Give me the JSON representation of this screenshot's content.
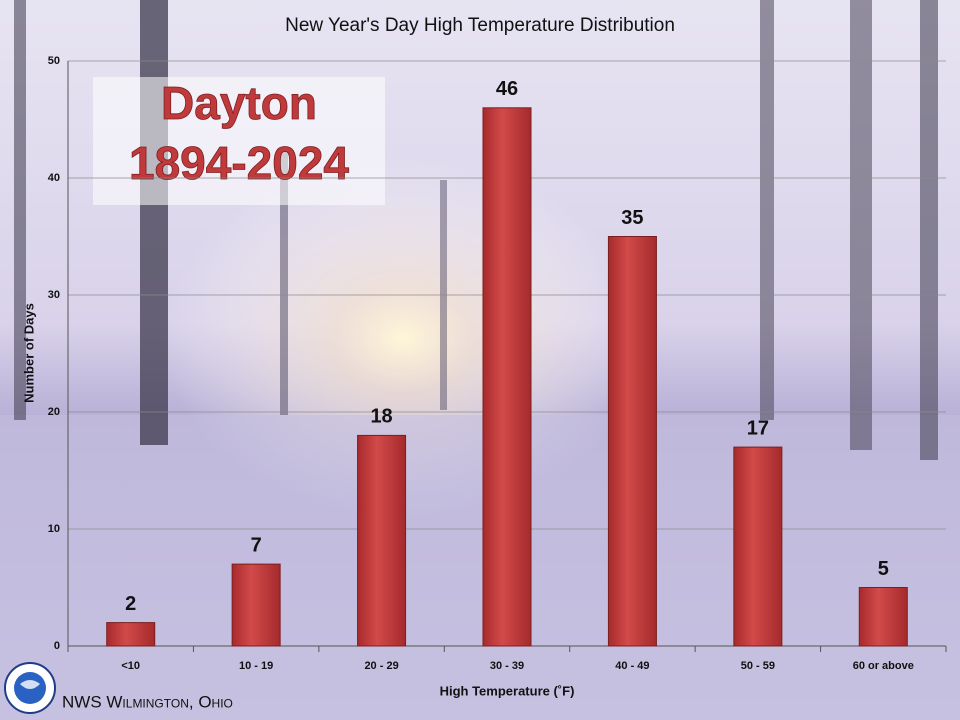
{
  "chart_data": {
    "type": "bar",
    "title": "New Year's Day High Temperature Distribution",
    "x_label": "High Temperature (˚F)",
    "y_label": "Number of Days",
    "categories": [
      "<10",
      "10 - 19",
      "20 - 29",
      "30 - 39",
      "40 - 49",
      "50 - 59",
      "60 or above"
    ],
    "values": [
      2,
      7,
      18,
      46,
      35,
      17,
      5
    ],
    "color": "#c0393b",
    "ylim": [
      0,
      50
    ],
    "yticks": [
      0,
      10,
      20,
      30,
      40,
      50
    ],
    "grid": true,
    "annotations": [
      "Dayton",
      "1894-2024"
    ],
    "footer": "NWS Wilmington, Ohio"
  }
}
